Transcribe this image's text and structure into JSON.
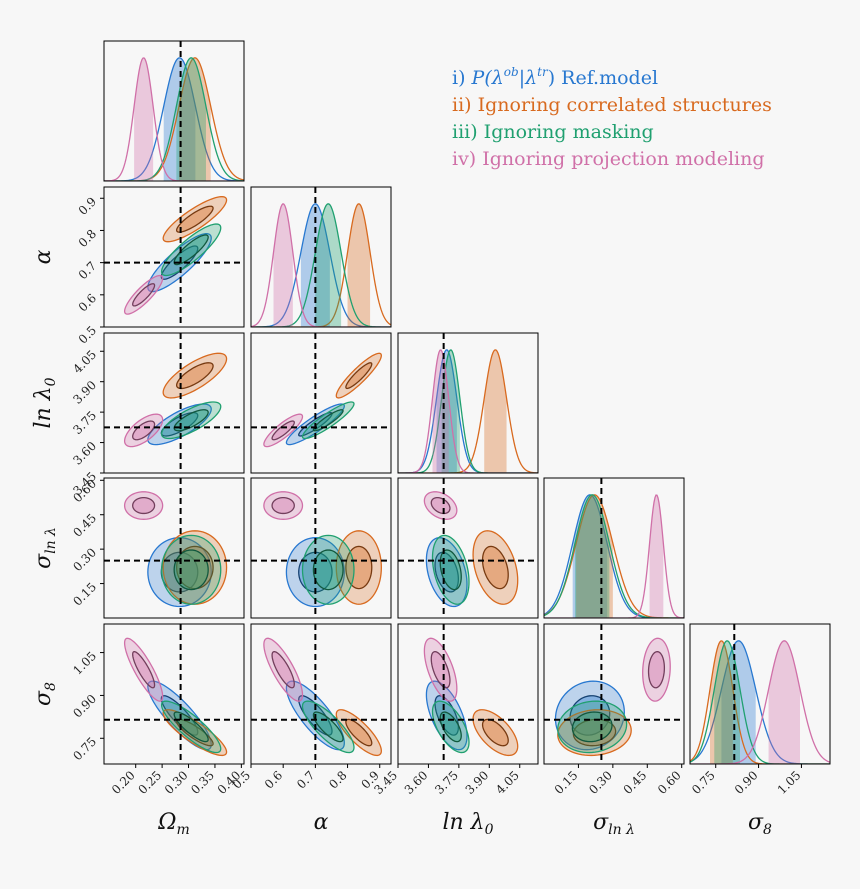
{
  "chart_data": {
    "type": "corner",
    "parameters": [
      {
        "key": "om",
        "label": "Ω",
        "sub": "m",
        "truth": 0.285,
        "range": [
          0.14,
          0.405
        ],
        "ticks": [
          "0.20",
          "0.25",
          "0.30",
          "0.35",
          "0.40"
        ],
        "tick_values": [
          0.2,
          0.25,
          0.3,
          0.35,
          0.4
        ]
      },
      {
        "key": "alpha",
        "label": "α",
        "sub": "",
        "truth": 0.7,
        "range": [
          0.5,
          0.935
        ],
        "ticks": [
          "0.5",
          "0.6",
          "0.7",
          "0.8",
          "0.9"
        ],
        "tick_values": [
          0.5,
          0.6,
          0.7,
          0.8,
          0.9
        ]
      },
      {
        "key": "lnl0",
        "label": "ln λ",
        "sub": "0",
        "truth": 3.675,
        "range": [
          3.45,
          4.14
        ],
        "ticks": [
          "3.45",
          "3.60",
          "3.75",
          "3.90",
          "4.05"
        ],
        "tick_values": [
          3.45,
          3.6,
          3.75,
          3.9,
          4.05
        ]
      },
      {
        "key": "sig",
        "label": "σ",
        "sub": "ln λ",
        "truth": 0.25,
        "range": [
          0.0,
          0.61
        ],
        "ticks": [
          "0.15",
          "0.30",
          "0.45",
          "0.60"
        ],
        "tick_values": [
          0.15,
          0.3,
          0.45,
          0.6
        ]
      },
      {
        "key": "s8",
        "label": "σ",
        "sub": "8",
        "truth": 0.815,
        "range": [
          0.66,
          1.15
        ],
        "ticks": [
          "0.75",
          "0.90",
          "1.05"
        ],
        "tick_values": [
          0.75,
          0.9,
          1.05
        ]
      }
    ],
    "series": [
      {
        "name": "i) P(λ^ob|λ^tr) Ref.model",
        "label_prefix": "i) ",
        "label_math": "P(λ",
        "label_sup1": "ob",
        "label_mid": "|λ",
        "label_sup2": "tr",
        "label_suffix": ") Ref.model",
        "color": "#2878d0",
        "mean": {
          "om": 0.283,
          "alpha": 0.7,
          "lnl0": 3.69,
          "sig": 0.2,
          "s8": 0.83
        },
        "std": {
          "om": 0.03,
          "alpha": 0.045,
          "lnl0": 0.05,
          "sig": 0.075,
          "s8": 0.06
        },
        "corr": {
          "om-alpha": 0.85,
          "om-lnl0": 0.75,
          "om-sig": 0.0,
          "om-s8": -0.85,
          "alpha-lnl0": 0.9,
          "alpha-sig": 0.0,
          "alpha-s8": -0.8,
          "lnl0-sig": -0.35,
          "lnl0-s8": -0.6,
          "sig-s8": 0.1
        }
      },
      {
        "name": "ii) Ignoring correlated structures",
        "color": "#d86a1f",
        "mean": {
          "om": 0.312,
          "alpha": 0.835,
          "lnl0": 3.93,
          "sig": 0.22,
          "s8": 0.77
        },
        "std": {
          "om": 0.03,
          "alpha": 0.035,
          "lnl0": 0.055,
          "sig": 0.08,
          "s8": 0.04
        },
        "corr": {
          "om-alpha": 0.85,
          "om-lnl0": 0.75,
          "om-sig": 0.0,
          "om-s8": -0.85,
          "alpha-lnl0": 0.9,
          "alpha-sig": 0.0,
          "alpha-s8": -0.8,
          "lnl0-sig": -0.35,
          "lnl0-s8": -0.6,
          "sig-s8": 0.1
        }
      },
      {
        "name": "iii) Ignoring masking",
        "color": "#20a070",
        "mean": {
          "om": 0.305,
          "alpha": 0.74,
          "lnl0": 3.71,
          "sig": 0.21,
          "s8": 0.79
        },
        "std": {
          "om": 0.028,
          "alpha": 0.04,
          "lnl0": 0.045,
          "sig": 0.075,
          "s8": 0.045
        },
        "corr": {
          "om-alpha": 0.85,
          "om-lnl0": 0.75,
          "om-sig": 0.0,
          "om-s8": -0.85,
          "alpha-lnl0": 0.9,
          "alpha-sig": 0.0,
          "alpha-s8": -0.8,
          "lnl0-sig": -0.35,
          "lnl0-s8": -0.6,
          "sig-s8": 0.1
        }
      },
      {
        "name": "iv) Ignoring projection modeling",
        "color": "#d070a8",
        "mean": {
          "om": 0.215,
          "alpha": 0.6,
          "lnl0": 3.66,
          "sig": 0.49,
          "s8": 0.99
        },
        "std": {
          "om": 0.018,
          "alpha": 0.03,
          "lnl0": 0.04,
          "sig": 0.03,
          "s8": 0.055
        },
        "corr": {
          "om-alpha": 0.85,
          "om-lnl0": 0.65,
          "om-sig": 0.0,
          "om-s8": -0.85,
          "alpha-lnl0": 0.85,
          "alpha-sig": 0.0,
          "alpha-s8": -0.8,
          "lnl0-sig": -0.35,
          "lnl0-s8": -0.6,
          "sig-s8": 0.1
        }
      }
    ],
    "legend_placement": "top-right",
    "truth_lines": "dashed black"
  }
}
